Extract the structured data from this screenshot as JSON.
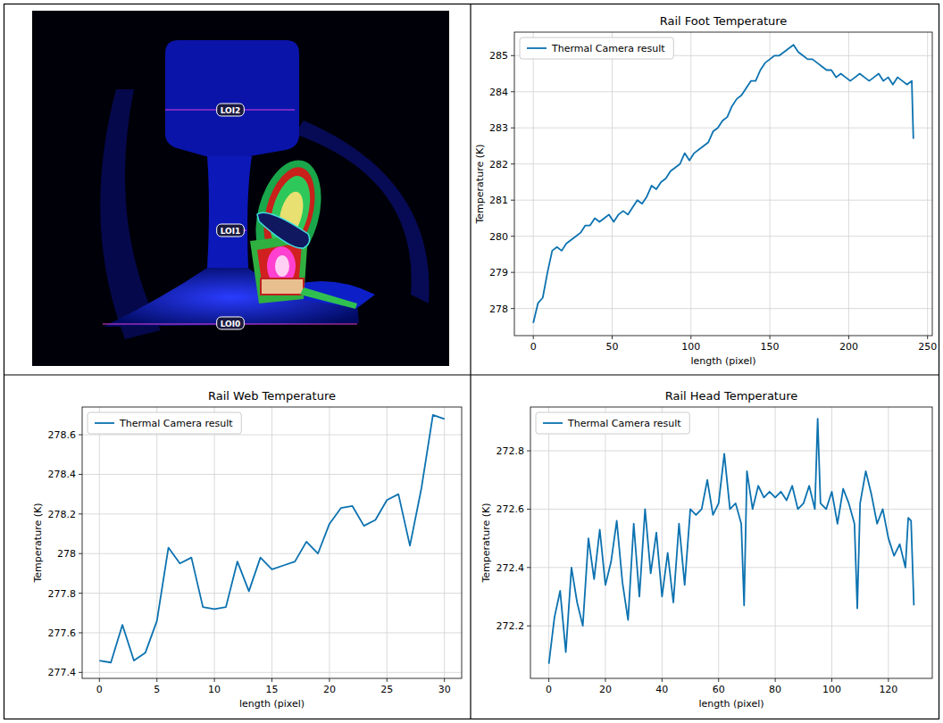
{
  "thermal_image": {
    "line_labels": [
      "LOI2",
      "LOI1",
      "LOI0"
    ]
  },
  "chart_data": [
    {
      "type": "line",
      "title": "Rail Foot Temperature",
      "x_label": "length (pixel)",
      "y_label": "Temperature (K)",
      "x": [
        0,
        3,
        6,
        9,
        12,
        15,
        18,
        21,
        24,
        27,
        30,
        33,
        36,
        39,
        42,
        45,
        48,
        51,
        54,
        57,
        60,
        63,
        66,
        69,
        72,
        75,
        78,
        81,
        84,
        87,
        90,
        93,
        96,
        99,
        102,
        105,
        108,
        111,
        114,
        117,
        120,
        123,
        126,
        129,
        132,
        135,
        138,
        141,
        144,
        147,
        150,
        153,
        156,
        159,
        162,
        165,
        168,
        171,
        174,
        177,
        180,
        183,
        186,
        189,
        192,
        195,
        198,
        201,
        204,
        207,
        210,
        213,
        216,
        219,
        222,
        225,
        228,
        231,
        234,
        237,
        240,
        241
      ],
      "series": [
        {
          "name": "Thermal Camera result",
          "color": "#0c72b0",
          "line_style": "solid",
          "values": [
            277.6,
            278.15,
            278.3,
            279.0,
            279.6,
            279.7,
            279.6,
            279.8,
            279.9,
            280.0,
            280.1,
            280.3,
            280.3,
            280.5,
            280.4,
            280.5,
            280.6,
            280.4,
            280.6,
            280.7,
            280.6,
            280.8,
            281.0,
            280.9,
            281.1,
            281.4,
            281.3,
            281.5,
            281.6,
            281.8,
            281.9,
            282.0,
            282.3,
            282.1,
            282.3,
            282.4,
            282.5,
            282.6,
            282.9,
            283.0,
            283.2,
            283.3,
            283.6,
            283.8,
            283.9,
            284.1,
            284.3,
            284.3,
            284.6,
            284.8,
            284.9,
            285.0,
            285.0,
            285.1,
            285.2,
            285.3,
            285.1,
            285.0,
            284.9,
            284.9,
            284.8,
            284.7,
            284.6,
            284.6,
            284.4,
            284.5,
            284.4,
            284.3,
            284.4,
            284.5,
            284.4,
            284.3,
            284.4,
            284.5,
            284.3,
            284.4,
            284.2,
            284.4,
            284.3,
            284.2,
            284.3,
            282.7
          ]
        }
      ],
      "xlim": [
        -12,
        253
      ],
      "ylim": [
        277.25,
        285.65
      ],
      "xticks": [
        0,
        50,
        100,
        150,
        200,
        250
      ],
      "yticks": [
        278,
        279,
        280,
        281,
        282,
        283,
        284,
        285
      ],
      "grid": true,
      "legend": "upper left"
    },
    {
      "type": "line",
      "title": "Rail Web Temperature",
      "x_label": "length (pixel)",
      "y_label": "Temperature (K)",
      "x": [
        0,
        1,
        2,
        3,
        4,
        5,
        6,
        7,
        8,
        9,
        10,
        11,
        12,
        13,
        14,
        15,
        16,
        17,
        18,
        19,
        20,
        21,
        22,
        23,
        24,
        25,
        26,
        27,
        28,
        29,
        30
      ],
      "series": [
        {
          "name": "Thermal Camera result",
          "color": "#0c72b0",
          "line_style": "solid",
          "values": [
            277.46,
            277.45,
            277.64,
            277.46,
            277.5,
            277.66,
            278.03,
            277.95,
            277.98,
            277.73,
            277.72,
            277.73,
            277.96,
            277.81,
            277.98,
            277.92,
            277.94,
            277.96,
            278.06,
            278.0,
            278.15,
            278.23,
            278.24,
            278.14,
            278.17,
            278.27,
            278.3,
            278.04,
            278.33,
            278.7,
            278.68
          ]
        }
      ],
      "xlim": [
        -1.5,
        31.5
      ],
      "ylim": [
        277.37,
        278.74
      ],
      "xticks": [
        0,
        5,
        10,
        15,
        20,
        25,
        30
      ],
      "yticks": [
        277.4,
        277.6,
        277.8,
        278.0,
        278.2,
        278.4,
        278.6
      ],
      "grid": true,
      "legend": "upper left"
    },
    {
      "type": "line",
      "title": "Rail Head Temperature",
      "x_label": "length (pixel)",
      "y_label": "Temperature (K)",
      "x": [
        0,
        2,
        4,
        6,
        8,
        10,
        12,
        14,
        16,
        18,
        20,
        22,
        24,
        26,
        28,
        30,
        32,
        34,
        36,
        38,
        40,
        42,
        44,
        46,
        48,
        50,
        52,
        54,
        56,
        58,
        60,
        62,
        64,
        66,
        68,
        69,
        70,
        72,
        74,
        76,
        78,
        80,
        82,
        84,
        86,
        88,
        90,
        92,
        94,
        95,
        96,
        98,
        100,
        102,
        104,
        106,
        108,
        109,
        110,
        112,
        114,
        116,
        118,
        120,
        122,
        124,
        126,
        127,
        128,
        129
      ],
      "series": [
        {
          "name": "Thermal Camera result",
          "color": "#0c72b0",
          "line_style": "solid",
          "values": [
            272.07,
            272.23,
            272.32,
            272.11,
            272.4,
            272.28,
            272.2,
            272.5,
            272.36,
            272.53,
            272.34,
            272.42,
            272.56,
            272.35,
            272.22,
            272.55,
            272.3,
            272.6,
            272.38,
            272.52,
            272.3,
            272.45,
            272.28,
            272.55,
            272.34,
            272.6,
            272.58,
            272.6,
            272.7,
            272.58,
            272.62,
            272.79,
            272.6,
            272.62,
            272.55,
            272.27,
            272.73,
            272.6,
            272.68,
            272.64,
            272.66,
            272.64,
            272.66,
            272.63,
            272.68,
            272.6,
            272.62,
            272.68,
            272.6,
            272.91,
            272.62,
            272.6,
            272.66,
            272.55,
            272.67,
            272.62,
            272.55,
            272.26,
            272.62,
            272.73,
            272.65,
            272.55,
            272.6,
            272.5,
            272.44,
            272.48,
            272.4,
            272.57,
            272.56,
            272.27
          ]
        }
      ],
      "xlim": [
        -6.5,
        135.5
      ],
      "ylim": [
        272.02,
        272.95
      ],
      "xticks": [
        0,
        20,
        40,
        60,
        80,
        100,
        120
      ],
      "yticks": [
        272.2,
        272.4,
        272.6,
        272.8
      ],
      "grid": true,
      "legend": "upper left"
    }
  ]
}
